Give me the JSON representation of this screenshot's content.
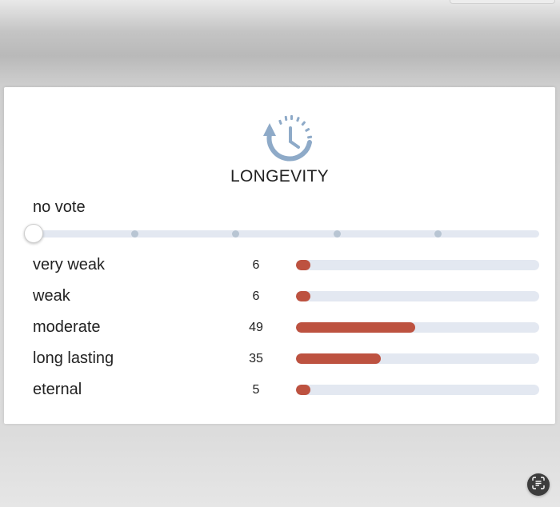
{
  "longevity": {
    "title": "LONGEVITY",
    "icon": "clock-with-arrow-icon",
    "accent_color": "#bd5240",
    "track_color": "#e3e8f1",
    "icon_color": "#8eaac8",
    "vote": {
      "label": "no vote",
      "steps": 5,
      "selected_index": 0
    },
    "rows": [
      {
        "label": "very weak",
        "count": "6",
        "fraction": 0.06
      },
      {
        "label": "weak",
        "count": "6",
        "fraction": 0.06
      },
      {
        "label": "moderate",
        "count": "49",
        "fraction": 0.49
      },
      {
        "label": "long lasting",
        "count": "35",
        "fraction": 0.35
      },
      {
        "label": "eternal",
        "count": "5",
        "fraction": 0.05
      }
    ]
  },
  "overlay": {
    "scan_button_icon": "text-scan-icon"
  }
}
